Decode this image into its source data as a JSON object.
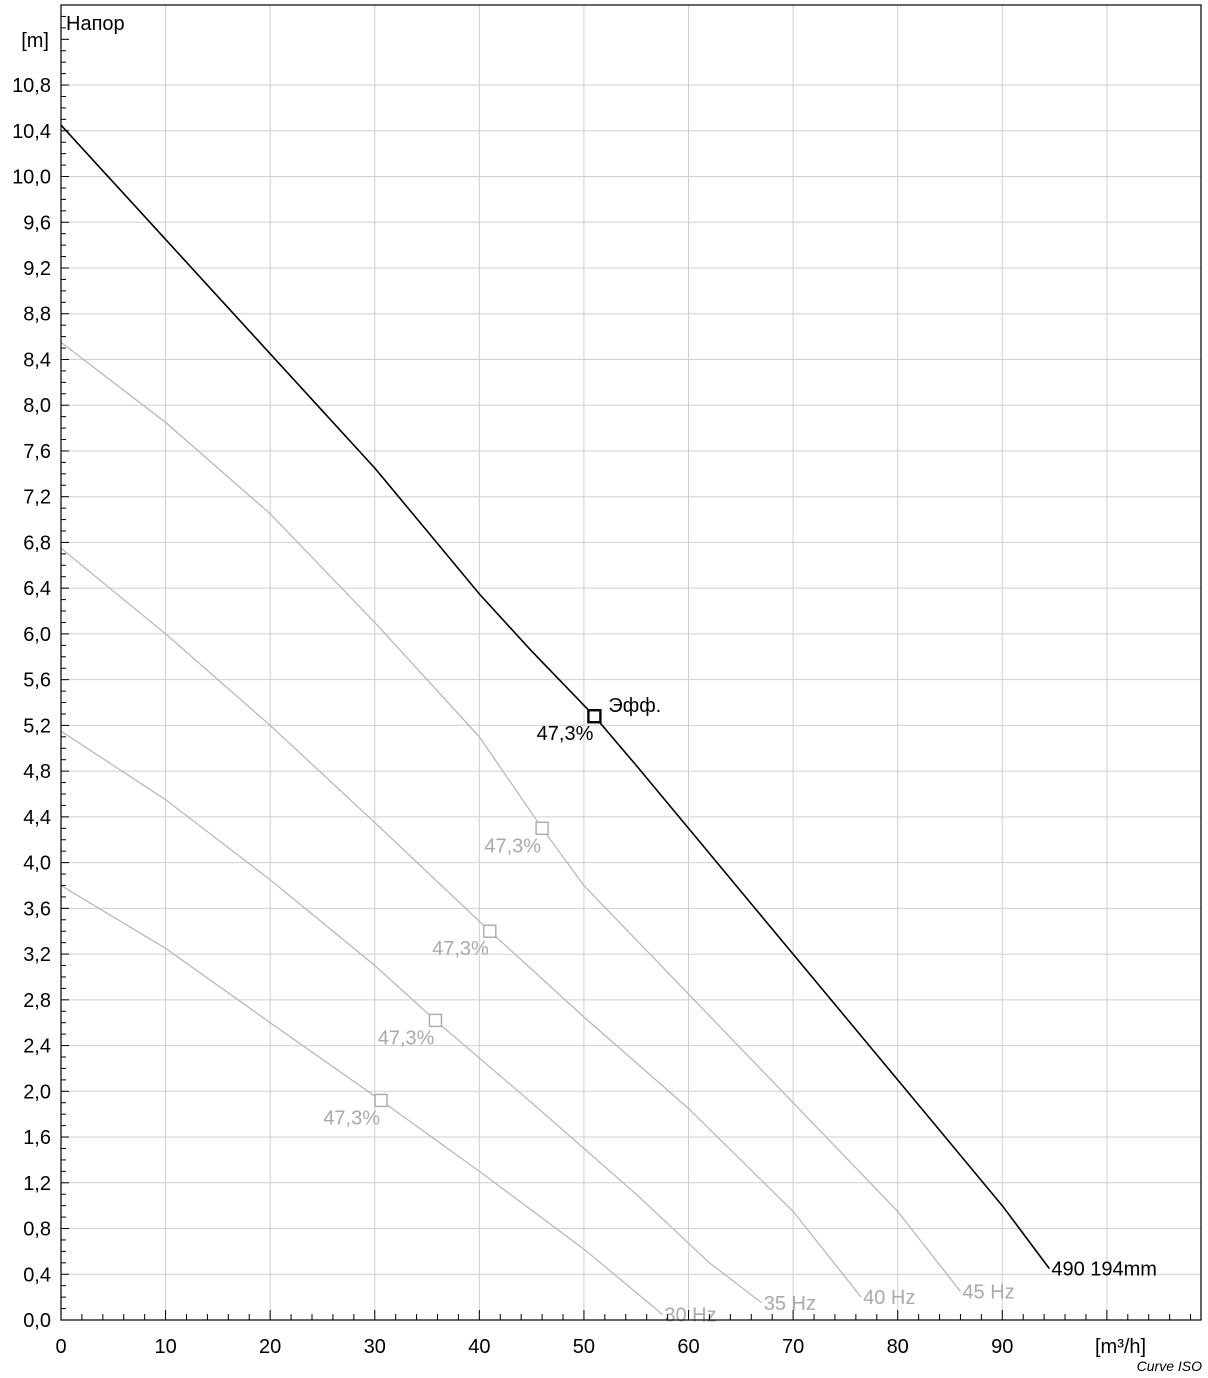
{
  "chart_data": {
    "type": "line",
    "title": "",
    "ylabel": "Напор",
    "yunit": "[m]",
    "xunit": "[m³/h]",
    "xlim": [
      0,
      109
    ],
    "ylim": [
      0,
      11.5
    ],
    "x_ticks": [
      0,
      10,
      20,
      30,
      40,
      50,
      60,
      70,
      80,
      90
    ],
    "x_tick_labels": [
      "0",
      "10",
      "20",
      "30",
      "40",
      "50",
      "60",
      "70",
      "80",
      "90"
    ],
    "y_ticks": [
      0,
      0.4,
      0.8,
      1.2,
      1.6,
      2.0,
      2.4,
      2.8,
      3.2,
      3.6,
      4.0,
      4.4,
      4.8,
      5.2,
      5.6,
      6.0,
      6.4,
      6.8,
      7.2,
      7.6,
      8.0,
      8.4,
      8.8,
      9.2,
      9.6,
      10.0,
      10.4,
      10.8
    ],
    "y_tick_labels": [
      "0,0",
      "0,4",
      "0,8",
      "1,2",
      "1,6",
      "2,0",
      "2,4",
      "2,8",
      "3,2",
      "3,6",
      "4,0",
      "4,4",
      "4,8",
      "5,2",
      "5,6",
      "6,0",
      "6,4",
      "6,8",
      "7,2",
      "7,6",
      "8,0",
      "8,4",
      "8,8",
      "9,2",
      "9,6",
      "10,0",
      "10,4",
      "10,8"
    ],
    "grid": true,
    "series": [
      {
        "name": "490 194mm",
        "color": "#000000",
        "x": [
          0,
          4,
          10,
          15.5,
          20,
          25,
          30,
          35,
          40,
          45,
          51,
          55,
          60,
          65,
          70,
          75,
          80,
          85,
          90,
          94.5
        ],
        "y": [
          10.45,
          10.05,
          9.45,
          8.9,
          8.45,
          7.95,
          7.45,
          6.9,
          6.35,
          5.85,
          5.28,
          4.85,
          4.3,
          3.75,
          3.2,
          2.65,
          2.1,
          1.55,
          1.0,
          0.45
        ],
        "bep": {
          "x": 51,
          "y": 5.28,
          "label": "47,3%",
          "annotation": "Эфф."
        }
      },
      {
        "name": "45 Hz",
        "color": "#b4b4b4",
        "x": [
          0,
          10,
          20,
          30,
          40,
          46,
          50,
          60,
          70,
          80,
          86
        ],
        "y": [
          8.55,
          7.85,
          7.05,
          6.1,
          5.1,
          4.3,
          3.8,
          2.85,
          1.9,
          0.95,
          0.25
        ],
        "bep": {
          "x": 46,
          "y": 4.3,
          "label": "47,3%"
        }
      },
      {
        "name": "40 Hz",
        "color": "#b4b4b4",
        "x": [
          0,
          10,
          20,
          30,
          41,
          50,
          60,
          70,
          76.5
        ],
        "y": [
          6.75,
          6.0,
          5.2,
          4.35,
          3.4,
          2.65,
          1.85,
          0.95,
          0.2
        ],
        "bep": {
          "x": 41,
          "y": 3.4,
          "label": "47,3%"
        }
      },
      {
        "name": "35 Hz",
        "color": "#b4b4b4",
        "x": [
          0,
          10,
          20,
          30,
          35.8,
          45,
          55,
          62,
          67
        ],
        "y": [
          5.15,
          4.55,
          3.85,
          3.1,
          2.62,
          1.9,
          1.1,
          0.5,
          0.15
        ],
        "bep": {
          "x": 35.8,
          "y": 2.62,
          "label": "47,3%"
        }
      },
      {
        "name": "30 Hz",
        "color": "#b4b4b4",
        "x": [
          0,
          10,
          20,
          30.6,
          40,
          50,
          57.5
        ],
        "y": [
          3.8,
          3.25,
          2.6,
          1.92,
          1.3,
          0.62,
          0.05
        ],
        "bep": {
          "x": 30.6,
          "y": 1.92,
          "label": "47,3%"
        }
      }
    ]
  },
  "footer": "Curve ISO"
}
